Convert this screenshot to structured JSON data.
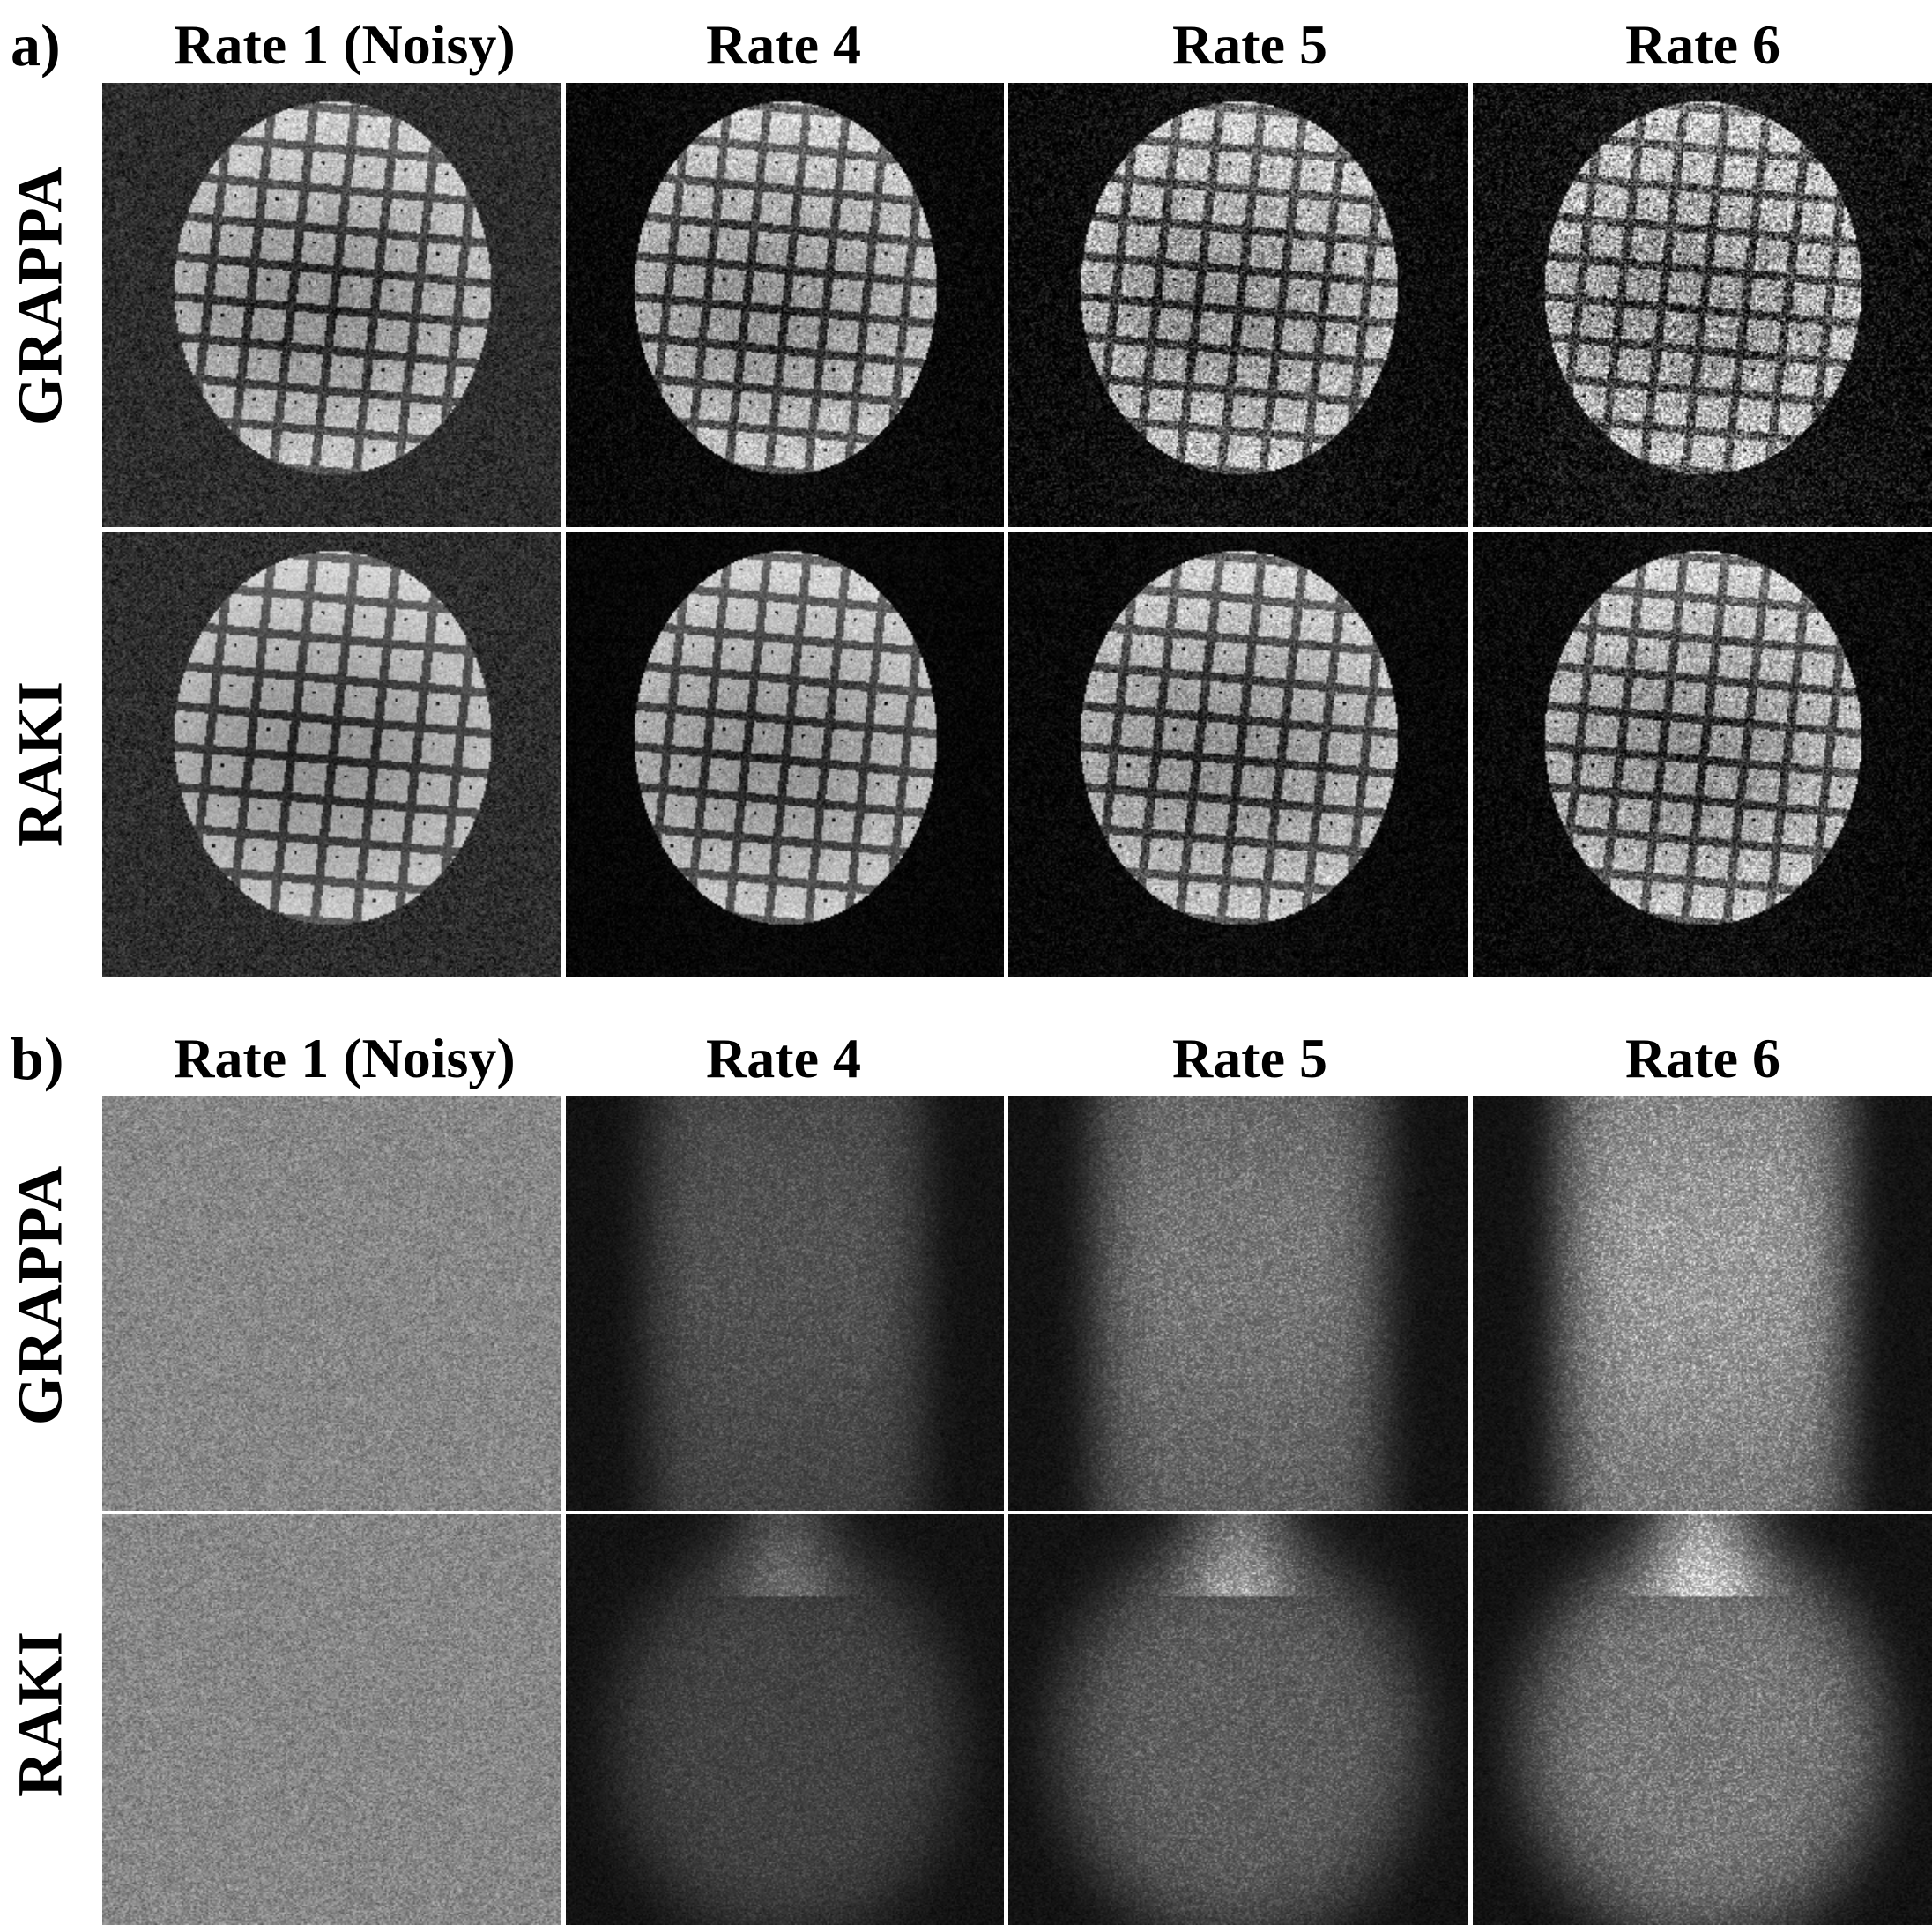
{
  "figure": {
    "sections": [
      {
        "letter": "a)",
        "columns": [
          "Rate 1 (Noisy)",
          "Rate 4",
          "Rate 5",
          "Rate 6"
        ],
        "rows": [
          "GRAPPA",
          "RAKI"
        ],
        "content": "reconstructed-image"
      },
      {
        "letter": "b)",
        "columns": [
          "Rate 1 (Noisy)",
          "Rate 4",
          "Rate 5",
          "Rate 6"
        ],
        "rows": [
          "GRAPPA",
          "RAKI"
        ],
        "content": "noise-map"
      }
    ]
  }
}
